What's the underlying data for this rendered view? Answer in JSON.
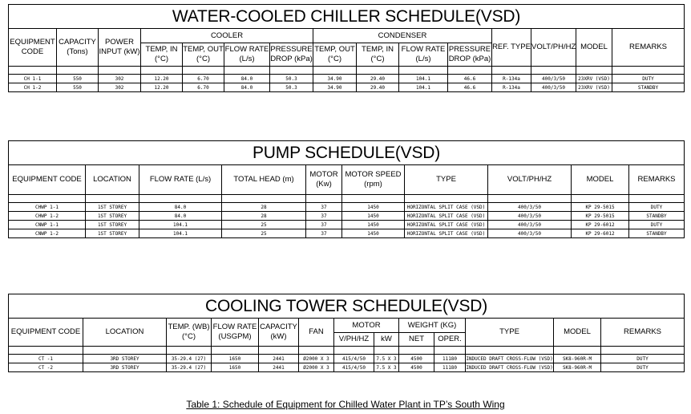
{
  "chiller": {
    "title": "WATER-COOLED CHILLER SCHEDULE(VSD)",
    "headers": {
      "equipment_code": "EQUIPMENT CODE",
      "capacity": "CAPACITY (Tons)",
      "power_input": "POWER INPUT (kW)",
      "cooler": "COOLER",
      "condenser": "CONDENSER",
      "temp_in": "TEMP, IN (°C)",
      "temp_out": "TEMP, OUT (°C)",
      "flow_rate": "FLOW RATE (L/s)",
      "pressure_drop": "PRESSURE DROP (kPa)",
      "c_temp_out": "TEMP, OUT (°C)",
      "c_temp_in": "TEMP, IN (°C)",
      "c_flow_rate": "FLOW RATE (L/s)",
      "c_pressure_drop": "PRESSURE DROP (kPa)",
      "ref_type": "REF. TYPE",
      "volt": "VOLT/PH/HZ",
      "model": "MODEL",
      "remarks": "REMARKS"
    },
    "rows": [
      [
        "CH 1-1",
        "550",
        "302",
        "12.20",
        "6.70",
        "84.0",
        "50.3",
        "34.90",
        "29.40",
        "104.1",
        "46.6",
        "R-134a",
        "400/3/50",
        "23XRV (VSD)",
        "DUTY"
      ],
      [
        "CH 1-2",
        "550",
        "302",
        "12.20",
        "6.70",
        "84.0",
        "50.3",
        "34.90",
        "29.40",
        "104.1",
        "46.6",
        "R-134a",
        "400/3/50",
        "23XRV (VSD)",
        "STANDBY"
      ]
    ]
  },
  "pump": {
    "title": "PUMP SCHEDULE(VSD)",
    "headers": {
      "equipment_code": "EQUIPMENT CODE",
      "location": "LOCATION",
      "flow_rate": "FLOW RATE (L/s)",
      "total_head": "TOTAL HEAD (m)",
      "motor": "MOTOR (Kw)",
      "motor_speed": "MOTOR SPEED (rpm)",
      "type": "TYPE",
      "volt": "VOLT/PH/HZ",
      "model": "MODEL",
      "remarks": "REMARKS"
    },
    "rows": [
      [
        "CHWP 1-1",
        "1ST STOREY",
        "84.0",
        "28",
        "37",
        "1450",
        "HORIZONTAL SPLIT CASE (VSD)",
        "400/3/50",
        "KP 29-5015",
        "DUTY"
      ],
      [
        "CHWP 1-2",
        "1ST STOREY",
        "84.0",
        "28",
        "37",
        "1450",
        "HORIZONTAL SPLIT CASE (VSD)",
        "400/3/50",
        "KP 29-5015",
        "STANDBY"
      ],
      [
        "CNWP 1-1",
        "1ST STOREY",
        "104.1",
        "25",
        "37",
        "1450",
        "HORIZONTAL SPLIT CASE (VSD)",
        "400/3/50",
        "KP 29-6012",
        "DUTY"
      ],
      [
        "CNWP 1-2",
        "1ST STOREY",
        "104.1",
        "25",
        "37",
        "1450",
        "HORIZONTAL SPLIT CASE (VSD)",
        "400/3/50",
        "KP 29-6012",
        "STANDBY"
      ]
    ]
  },
  "tower": {
    "title": "COOLING TOWER SCHEDULE(VSD)",
    "headers": {
      "equipment_code": "EQUIPMENT CODE",
      "location": "LOCATION",
      "temp_wb": "TEMP. (WB) (°C)",
      "flow_rate": "FLOW RATE (USGPM)",
      "capacity": "CAPACITY (kW)",
      "fan": "FAN",
      "motor": "MOTOR",
      "weight": "WEIGHT (KG)",
      "type": "TYPE",
      "model": "MODEL",
      "remarks": "REMARKS",
      "v_ph_hz": "V/PH/HZ",
      "kw": "kW",
      "net": "NET",
      "oper": "OPER."
    },
    "rows": [
      [
        "CT -1",
        "3RD STOREY",
        "35-29.4 (27)",
        "1650",
        "2441",
        "Ø2000 X 3",
        "415/4/50",
        "7.5 X 3",
        "4500",
        "11180",
        "INDUCED DRAFT CROSS-FLOW (VSD)",
        "SK8-960R-M",
        "DUTY"
      ],
      [
        "CT -2",
        "3RD STOREY",
        "35-29.4 (27)",
        "1650",
        "2441",
        "Ø2000 X 3",
        "415/4/50",
        "7.5 X 3",
        "4500",
        "11180",
        "INDUCED DRAFT CROSS-FLOW (VSD)",
        "SK8-960R-M",
        "DUTY"
      ]
    ]
  },
  "caption": "Table 1: Schedule of Equipment for Chilled Water Plant in TP’s South Wing"
}
